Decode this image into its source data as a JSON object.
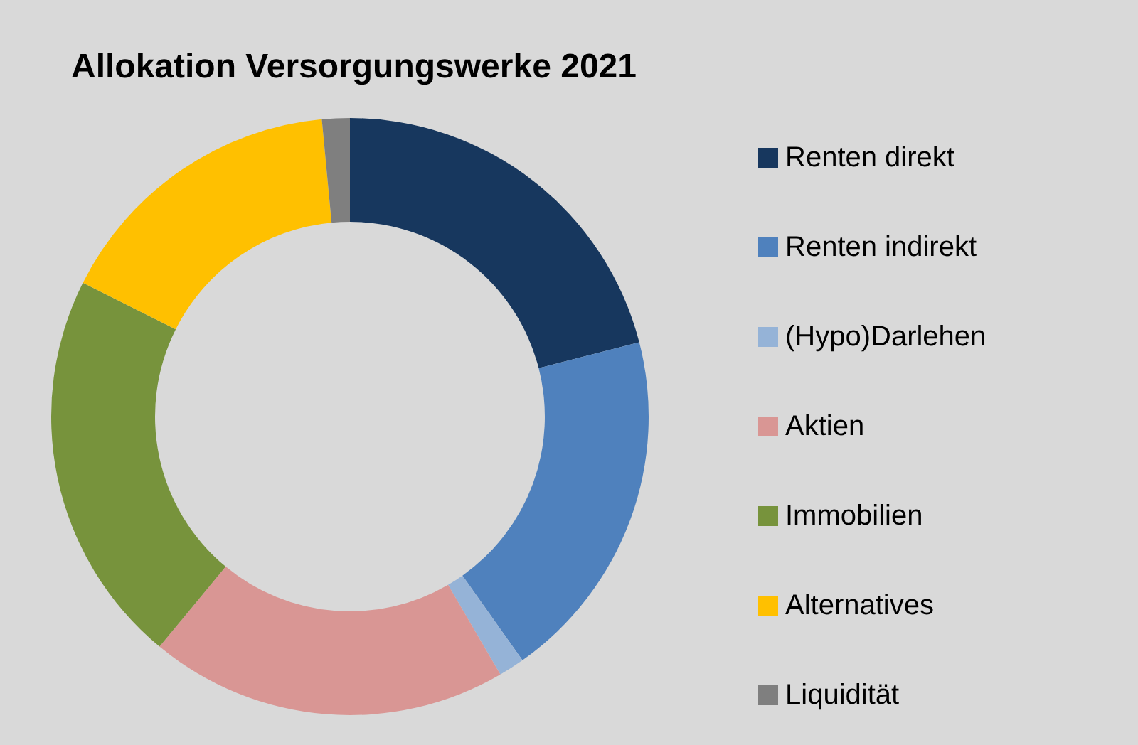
{
  "chart_data": {
    "type": "donut",
    "title": "Allokation Versorgungswerke 2021",
    "categories": [
      "Renten direkt",
      "Renten indirekt",
      "(Hypo)Darlehen",
      "Aktien",
      "Immobilien",
      "Alternatives",
      "Liquidität"
    ],
    "values": [
      21.0,
      19.2,
      1.4,
      19.4,
      21.4,
      16.1,
      1.5
    ],
    "colors": [
      "#17375e",
      "#4f81bd",
      "#95b3d7",
      "#d99694",
      "#77933c",
      "#ffc000",
      "#7f7f7f"
    ],
    "legend": "right"
  }
}
